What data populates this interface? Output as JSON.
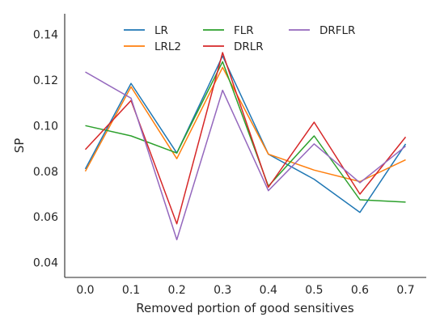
{
  "chart_data": {
    "type": "line",
    "xlabel": "Removed portion of good sensitives",
    "ylabel": "SP",
    "x": [
      0.0,
      0.1,
      0.2,
      0.3,
      0.4,
      0.5,
      0.6,
      0.7
    ],
    "xticks": [
      "0.0",
      "0.1",
      "0.2",
      "0.3",
      "0.4",
      "0.5",
      "0.6",
      "0.7"
    ],
    "xlim": [
      -0.045,
      0.745
    ],
    "ylim": [
      0.0335,
      0.149
    ],
    "yticks": [
      "0.04",
      "0.06",
      "0.08",
      "0.10",
      "0.12",
      "0.14"
    ],
    "ytick_values": [
      0.04,
      0.06,
      0.08,
      0.1,
      0.12,
      0.14
    ],
    "grid": false,
    "legend_position": "top",
    "series": [
      {
        "name": "LR",
        "color": "#1f77b4",
        "values": [
          0.081,
          0.1185,
          0.088,
          0.1305,
          0.0875,
          0.0765,
          0.062,
          0.092
        ]
      },
      {
        "name": "LRL2",
        "color": "#ff7f0e",
        "values": [
          0.08,
          0.117,
          0.0855,
          0.1255,
          0.0875,
          0.0805,
          0.0755,
          0.085
        ]
      },
      {
        "name": "FLR",
        "color": "#2ca02c",
        "values": [
          0.1,
          0.0955,
          0.088,
          0.128,
          0.0735,
          0.0955,
          0.0675,
          0.0665
        ]
      },
      {
        "name": "DRLR",
        "color": "#d62728",
        "values": [
          0.0895,
          0.111,
          0.057,
          0.132,
          0.073,
          0.1015,
          0.07,
          0.095
        ]
      },
      {
        "name": "DRFLR",
        "color": "#9467bd",
        "values": [
          0.1235,
          0.112,
          0.05,
          0.1155,
          0.0715,
          0.092,
          0.075,
          0.091
        ]
      }
    ]
  }
}
